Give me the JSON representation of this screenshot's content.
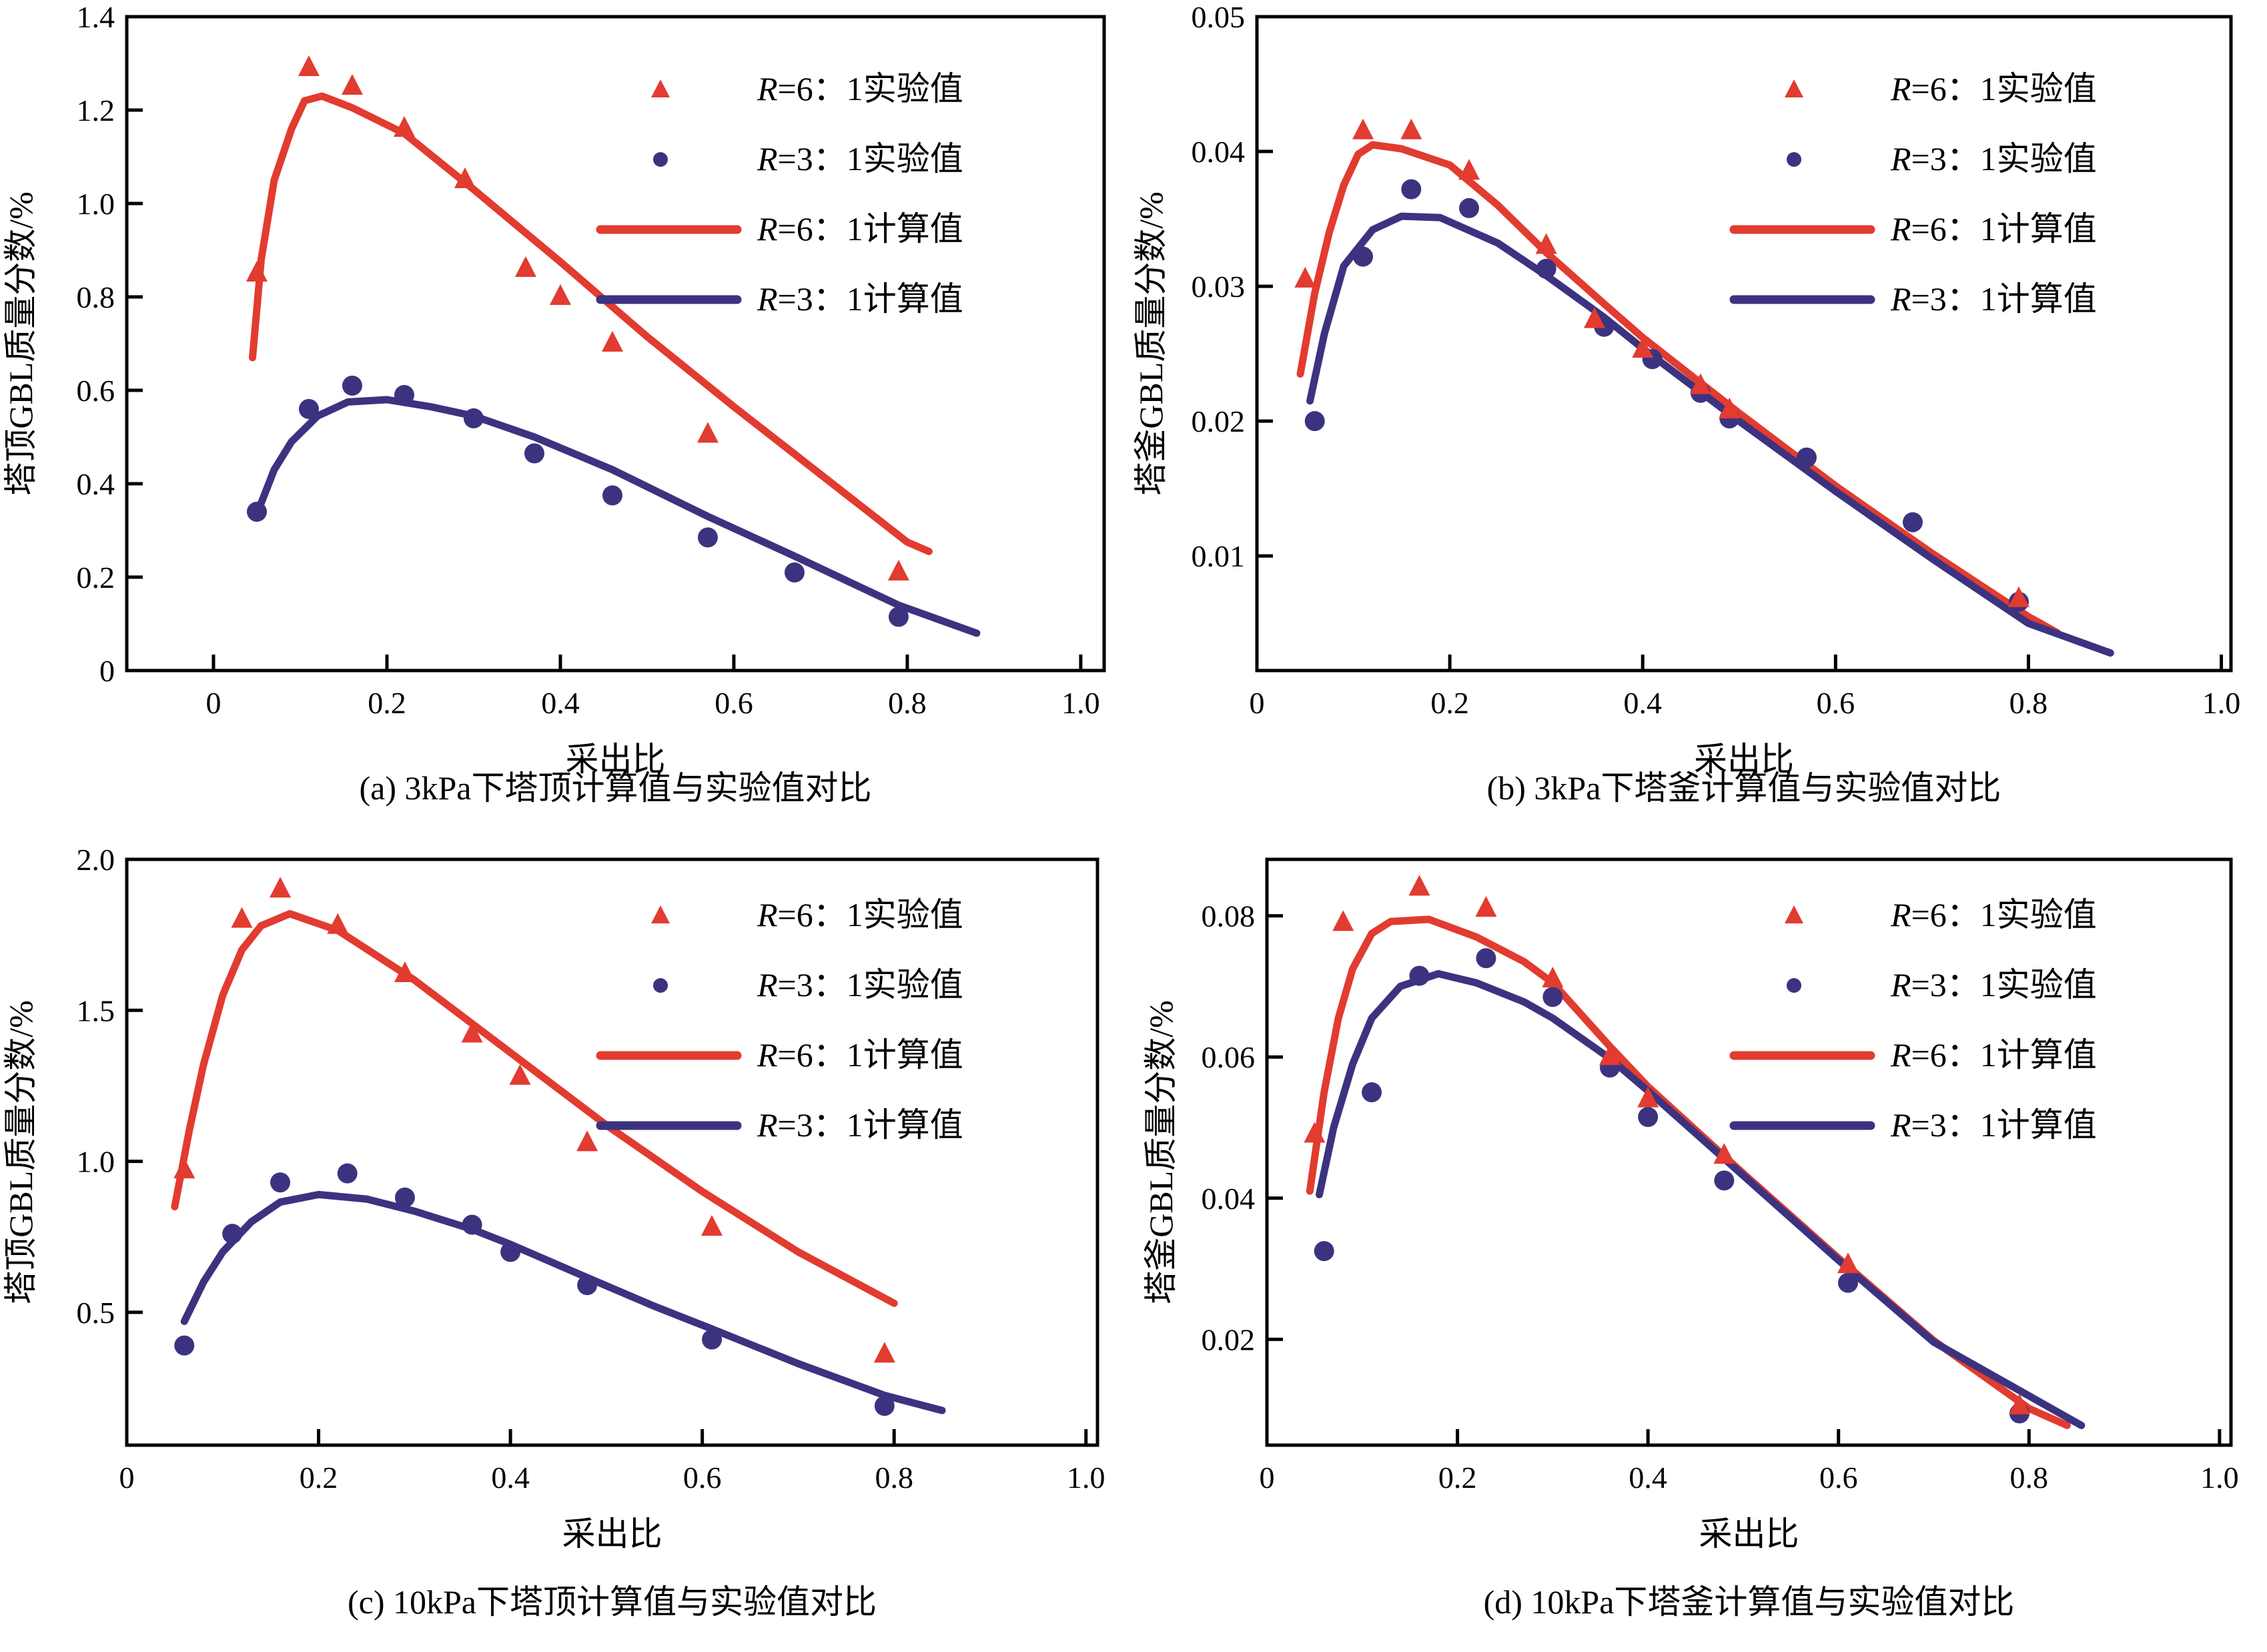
{
  "figure": {
    "background": "#ffffff"
  },
  "colors": {
    "r6": "#e23b30",
    "r3": "#3c3380",
    "axis": "#000000"
  },
  "legend": {
    "entries": [
      {
        "series": "r6-exp",
        "marker": "triangle",
        "label": "R=6：1实验值",
        "prefix": "R",
        "rest": "=6：1实验值"
      },
      {
        "series": "r3-exp",
        "marker": "circle",
        "label": "R=3：1实验值",
        "prefix": "R",
        "rest": "=3：1实验值"
      },
      {
        "series": "r6-calc",
        "marker": "line-r6",
        "label": "R=6：1计算值",
        "prefix": "R",
        "rest": "=6：1计算值"
      },
      {
        "series": "r3-calc",
        "marker": "line-r3",
        "label": "R=3：1计算值",
        "prefix": "R",
        "rest": "=3：1计算值"
      }
    ]
  },
  "chart_data": [
    {
      "id": "a",
      "type": "line+scatter",
      "caption": "(a) 3kPa下塔顶计算值与实验值对比",
      "xlabel": "采出比",
      "ylabel": "塔顶GBL质量分数/%",
      "xlim": [
        -0.1,
        1.027
      ],
      "ylim": [
        0,
        1.4
      ],
      "grid": false,
      "legend_position": "upper-right-inside",
      "xticks": [
        {
          "v": 0,
          "label": "0"
        },
        {
          "v": 0.2,
          "label": "0.2"
        },
        {
          "v": 0.4,
          "label": "0.4"
        },
        {
          "v": 0.6,
          "label": "0.6"
        },
        {
          "v": 0.8,
          "label": "0.8"
        },
        {
          "v": 1.0,
          "label": "1.0"
        }
      ],
      "yticks": [
        {
          "v": 0,
          "label": "0"
        },
        {
          "v": 0.2,
          "label": "0.2"
        },
        {
          "v": 0.4,
          "label": "0.4"
        },
        {
          "v": 0.6,
          "label": "0.6"
        },
        {
          "v": 0.8,
          "label": "0.8"
        },
        {
          "v": 1.0,
          "label": "1.0"
        },
        {
          "v": 1.2,
          "label": "1.2"
        },
        {
          "v": 1.4,
          "label": "1.4"
        }
      ],
      "series": {
        "r6_exp": [
          [
            0.05,
            0.85
          ],
          [
            0.11,
            1.29
          ],
          [
            0.16,
            1.25
          ],
          [
            0.22,
            1.16
          ],
          [
            0.29,
            1.05
          ],
          [
            0.36,
            0.86
          ],
          [
            0.4,
            0.8
          ],
          [
            0.46,
            0.7
          ],
          [
            0.57,
            0.505
          ],
          [
            0.79,
            0.21
          ]
        ],
        "r3_exp": [
          [
            0.05,
            0.34
          ],
          [
            0.11,
            0.56
          ],
          [
            0.16,
            0.61
          ],
          [
            0.22,
            0.59
          ],
          [
            0.3,
            0.54
          ],
          [
            0.37,
            0.465
          ],
          [
            0.46,
            0.375
          ],
          [
            0.57,
            0.285
          ],
          [
            0.67,
            0.21
          ],
          [
            0.79,
            0.115
          ]
        ],
        "r6_calc": [
          [
            0.045,
            0.67
          ],
          [
            0.055,
            0.88
          ],
          [
            0.07,
            1.05
          ],
          [
            0.09,
            1.16
          ],
          [
            0.105,
            1.22
          ],
          [
            0.125,
            1.23
          ],
          [
            0.16,
            1.205
          ],
          [
            0.22,
            1.15
          ],
          [
            0.3,
            1.03
          ],
          [
            0.4,
            0.875
          ],
          [
            0.5,
            0.715
          ],
          [
            0.6,
            0.565
          ],
          [
            0.7,
            0.42
          ],
          [
            0.8,
            0.275
          ],
          [
            0.825,
            0.255
          ]
        ],
        "r3_calc": [
          [
            0.05,
            0.335
          ],
          [
            0.07,
            0.43
          ],
          [
            0.09,
            0.49
          ],
          [
            0.12,
            0.545
          ],
          [
            0.155,
            0.575
          ],
          [
            0.2,
            0.58
          ],
          [
            0.25,
            0.565
          ],
          [
            0.3,
            0.545
          ],
          [
            0.37,
            0.5
          ],
          [
            0.46,
            0.43
          ],
          [
            0.57,
            0.33
          ],
          [
            0.67,
            0.245
          ],
          [
            0.79,
            0.14
          ],
          [
            0.88,
            0.08
          ]
        ]
      }
    },
    {
      "id": "b",
      "type": "line+scatter",
      "caption": "(b) 3kPa下塔釜计算值与实验值对比",
      "xlabel": "采出比",
      "ylabel": "塔釜GBL质量分数/%",
      "xlim": [
        0,
        1.01
      ],
      "ylim": [
        0.0015,
        0.05
      ],
      "grid": false,
      "legend_position": "upper-right-inside",
      "xticks": [
        {
          "v": 0,
          "label": "0"
        },
        {
          "v": 0.2,
          "label": "0.2"
        },
        {
          "v": 0.4,
          "label": "0.4"
        },
        {
          "v": 0.6,
          "label": "0.6"
        },
        {
          "v": 0.8,
          "label": "0.8"
        },
        {
          "v": 1.0,
          "label": "1.0"
        }
      ],
      "yticks": [
        {
          "v": 0.01,
          "label": "0.01"
        },
        {
          "v": 0.02,
          "label": "0.02"
        },
        {
          "v": 0.03,
          "label": "0.03"
        },
        {
          "v": 0.04,
          "label": "0.04"
        },
        {
          "v": 0.05,
          "label": "0.05"
        }
      ],
      "series": {
        "r6_exp": [
          [
            0.05,
            0.0305
          ],
          [
            0.11,
            0.0415
          ],
          [
            0.16,
            0.0415
          ],
          [
            0.22,
            0.0385
          ],
          [
            0.3,
            0.033
          ],
          [
            0.35,
            0.0275
          ],
          [
            0.4,
            0.0253
          ],
          [
            0.46,
            0.0226
          ],
          [
            0.49,
            0.0208
          ],
          [
            0.79,
            0.0068
          ]
        ],
        "r3_exp": [
          [
            0.06,
            0.02
          ],
          [
            0.11,
            0.0322
          ],
          [
            0.16,
            0.0372
          ],
          [
            0.22,
            0.0358
          ],
          [
            0.3,
            0.0313
          ],
          [
            0.36,
            0.027
          ],
          [
            0.41,
            0.0246
          ],
          [
            0.46,
            0.0221
          ],
          [
            0.49,
            0.0202
          ],
          [
            0.57,
            0.0173
          ],
          [
            0.68,
            0.0125
          ],
          [
            0.79,
            0.0066
          ]
        ],
        "r6_calc": [
          [
            0.045,
            0.0235
          ],
          [
            0.06,
            0.0295
          ],
          [
            0.075,
            0.034
          ],
          [
            0.09,
            0.0375
          ],
          [
            0.105,
            0.0398
          ],
          [
            0.12,
            0.0405
          ],
          [
            0.15,
            0.0402
          ],
          [
            0.2,
            0.039
          ],
          [
            0.25,
            0.036
          ],
          [
            0.3,
            0.0325
          ],
          [
            0.36,
            0.0287
          ],
          [
            0.4,
            0.0262
          ],
          [
            0.5,
            0.0206
          ],
          [
            0.6,
            0.0152
          ],
          [
            0.7,
            0.0102
          ],
          [
            0.8,
            0.0055
          ],
          [
            0.83,
            0.0043
          ]
        ],
        "r3_calc": [
          [
            0.055,
            0.0215
          ],
          [
            0.07,
            0.0265
          ],
          [
            0.09,
            0.0315
          ],
          [
            0.12,
            0.0342
          ],
          [
            0.15,
            0.0352
          ],
          [
            0.19,
            0.0351
          ],
          [
            0.25,
            0.0332
          ],
          [
            0.3,
            0.0308
          ],
          [
            0.36,
            0.0277
          ],
          [
            0.4,
            0.0254
          ],
          [
            0.5,
            0.02
          ],
          [
            0.6,
            0.0148
          ],
          [
            0.7,
            0.0098
          ],
          [
            0.8,
            0.005
          ],
          [
            0.885,
            0.0028
          ]
        ]
      }
    },
    {
      "id": "c",
      "type": "line+scatter",
      "caption": "(c) 10kPa下塔顶计算值与实验值对比",
      "xlabel": "采出比",
      "ylabel": "塔顶GBL质量分数/%",
      "xlim": [
        0,
        1.012
      ],
      "ylim": [
        0.06,
        2.0
      ],
      "grid": false,
      "legend_position": "upper-right-inside",
      "xticks": [
        {
          "v": 0,
          "label": "0"
        },
        {
          "v": 0.2,
          "label": "0.2"
        },
        {
          "v": 0.4,
          "label": "0.4"
        },
        {
          "v": 0.6,
          "label": "0.6"
        },
        {
          "v": 0.8,
          "label": "0.8"
        },
        {
          "v": 1.0,
          "label": "1.0"
        }
      ],
      "yticks": [
        {
          "v": 0.5,
          "label": "0.5"
        },
        {
          "v": 1.0,
          "label": "1.0"
        },
        {
          "v": 1.5,
          "label": "1.5"
        },
        {
          "v": 2.0,
          "label": "2.0"
        }
      ],
      "series": {
        "r6_exp": [
          [
            0.06,
            0.97
          ],
          [
            0.12,
            1.8
          ],
          [
            0.16,
            1.9
          ],
          [
            0.22,
            1.78
          ],
          [
            0.29,
            1.62
          ],
          [
            0.36,
            1.42
          ],
          [
            0.41,
            1.28
          ],
          [
            0.48,
            1.06
          ],
          [
            0.61,
            0.78
          ],
          [
            0.79,
            0.36
          ]
        ],
        "r3_exp": [
          [
            0.06,
            0.39
          ],
          [
            0.11,
            0.76
          ],
          [
            0.16,
            0.93
          ],
          [
            0.23,
            0.96
          ],
          [
            0.29,
            0.88
          ],
          [
            0.36,
            0.79
          ],
          [
            0.4,
            0.7
          ],
          [
            0.48,
            0.59
          ],
          [
            0.61,
            0.41
          ],
          [
            0.79,
            0.19
          ]
        ],
        "r6_calc": [
          [
            0.05,
            0.85
          ],
          [
            0.065,
            1.1
          ],
          [
            0.08,
            1.32
          ],
          [
            0.1,
            1.55
          ],
          [
            0.12,
            1.7
          ],
          [
            0.14,
            1.78
          ],
          [
            0.17,
            1.82
          ],
          [
            0.22,
            1.765
          ],
          [
            0.3,
            1.6
          ],
          [
            0.4,
            1.36
          ],
          [
            0.5,
            1.12
          ],
          [
            0.6,
            0.9
          ],
          [
            0.7,
            0.7
          ],
          [
            0.8,
            0.53
          ]
        ],
        "r3_calc": [
          [
            0.06,
            0.47
          ],
          [
            0.08,
            0.6
          ],
          [
            0.1,
            0.7
          ],
          [
            0.13,
            0.8
          ],
          [
            0.16,
            0.865
          ],
          [
            0.2,
            0.89
          ],
          [
            0.25,
            0.875
          ],
          [
            0.3,
            0.835
          ],
          [
            0.36,
            0.775
          ],
          [
            0.4,
            0.725
          ],
          [
            0.48,
            0.615
          ],
          [
            0.55,
            0.52
          ],
          [
            0.61,
            0.445
          ],
          [
            0.7,
            0.33
          ],
          [
            0.79,
            0.225
          ],
          [
            0.85,
            0.175
          ]
        ]
      }
    },
    {
      "id": "d",
      "type": "line+scatter",
      "caption": "(d) 10kPa下塔釜计算值与实验值对比",
      "xlabel": "采出比",
      "ylabel": "塔釜GBL质量分数/%",
      "xlim": [
        0,
        1.012
      ],
      "ylim": [
        0.005,
        0.088
      ],
      "grid": false,
      "legend_position": "upper-right-inside",
      "xticks": [
        {
          "v": 0,
          "label": "0"
        },
        {
          "v": 0.2,
          "label": "0.2"
        },
        {
          "v": 0.4,
          "label": "0.4"
        },
        {
          "v": 0.6,
          "label": "0.6"
        },
        {
          "v": 0.8,
          "label": "0.8"
        },
        {
          "v": 1.0,
          "label": "1.0"
        }
      ],
      "yticks": [
        {
          "v": 0.02,
          "label": "0.02"
        },
        {
          "v": 0.04,
          "label": "0.04"
        },
        {
          "v": 0.06,
          "label": "0.06"
        },
        {
          "v": 0.08,
          "label": "0.08"
        }
      ],
      "series": {
        "r6_exp": [
          [
            0.05,
            0.049
          ],
          [
            0.08,
            0.079
          ],
          [
            0.16,
            0.084
          ],
          [
            0.23,
            0.081
          ],
          [
            0.3,
            0.071
          ],
          [
            0.36,
            0.06
          ],
          [
            0.4,
            0.054
          ],
          [
            0.48,
            0.046
          ],
          [
            0.61,
            0.0305
          ],
          [
            0.79,
            0.0105
          ]
        ],
        "r3_exp": [
          [
            0.06,
            0.0325
          ],
          [
            0.11,
            0.055
          ],
          [
            0.16,
            0.0715
          ],
          [
            0.23,
            0.074
          ],
          [
            0.3,
            0.0685
          ],
          [
            0.36,
            0.0585
          ],
          [
            0.4,
            0.0515
          ],
          [
            0.48,
            0.0425
          ],
          [
            0.61,
            0.028
          ],
          [
            0.79,
            0.0095
          ]
        ],
        "r6_calc": [
          [
            0.045,
            0.041
          ],
          [
            0.06,
            0.055
          ],
          [
            0.075,
            0.0655
          ],
          [
            0.09,
            0.0725
          ],
          [
            0.11,
            0.0775
          ],
          [
            0.13,
            0.0792
          ],
          [
            0.17,
            0.0795
          ],
          [
            0.22,
            0.077
          ],
          [
            0.27,
            0.0735
          ],
          [
            0.3,
            0.0705
          ],
          [
            0.36,
            0.0615
          ],
          [
            0.4,
            0.0558
          ],
          [
            0.5,
            0.0435
          ],
          [
            0.6,
            0.0315
          ],
          [
            0.7,
            0.0198
          ],
          [
            0.8,
            0.0102
          ],
          [
            0.84,
            0.0078
          ]
        ],
        "r3_calc": [
          [
            0.055,
            0.0405
          ],
          [
            0.07,
            0.05
          ],
          [
            0.09,
            0.059
          ],
          [
            0.11,
            0.0655
          ],
          [
            0.14,
            0.07
          ],
          [
            0.18,
            0.0718
          ],
          [
            0.22,
            0.0705
          ],
          [
            0.27,
            0.0678
          ],
          [
            0.3,
            0.0655
          ],
          [
            0.36,
            0.0598
          ],
          [
            0.4,
            0.0552
          ],
          [
            0.5,
            0.0432
          ],
          [
            0.6,
            0.0312
          ],
          [
            0.7,
            0.0196
          ],
          [
            0.855,
            0.0078
          ]
        ]
      }
    }
  ]
}
